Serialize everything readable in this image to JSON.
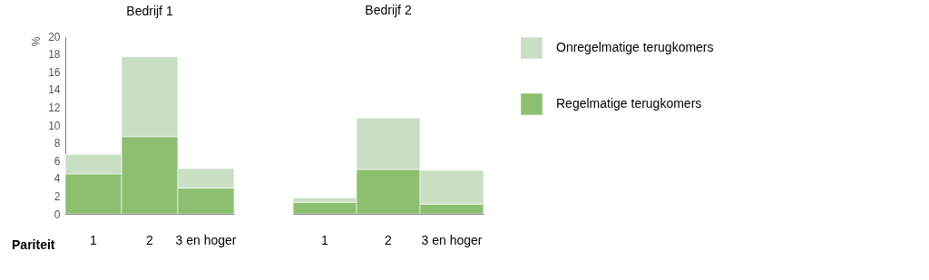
{
  "chart_data": [
    {
      "type": "bar",
      "title": "Bedrijf 1",
      "xlabel": "Pariteit",
      "ylabel": "%",
      "categories": [
        "1",
        "2",
        "3 en hoger"
      ],
      "stacked": true,
      "ylim": [
        0,
        20
      ],
      "yticks": [
        0,
        2,
        4,
        6,
        8,
        10,
        12,
        14,
        16,
        18,
        20
      ],
      "grid": false,
      "legend": false,
      "series": [
        {
          "color": "#8cbf70",
          "values": [
            4.5,
            8.7,
            2.9
          ]
        },
        {
          "color": "#c9dfc3",
          "values": [
            2.2,
            9.0,
            2.2
          ]
        }
      ]
    },
    {
      "type": "bar",
      "title": "Bedrijf 2",
      "categories": [
        "1",
        "2",
        "3 en hoger"
      ],
      "stacked": true,
      "ylim": [
        0,
        20
      ],
      "yticks": [
        0,
        2,
        4,
        6,
        8,
        10,
        12,
        14,
        16,
        18,
        20
      ],
      "tick_labels": "x",
      "grid": false,
      "legend": "right",
      "series": [
        {
          "name": "Regelmatige terugkomers",
          "color": "#8cbf70",
          "values": [
            1.3,
            5.0,
            1.1
          ]
        },
        {
          "name": "Onregelmatige terugkomers",
          "color": "#c9dfc3",
          "values": [
            0.5,
            5.8,
            3.8
          ]
        }
      ]
    }
  ]
}
